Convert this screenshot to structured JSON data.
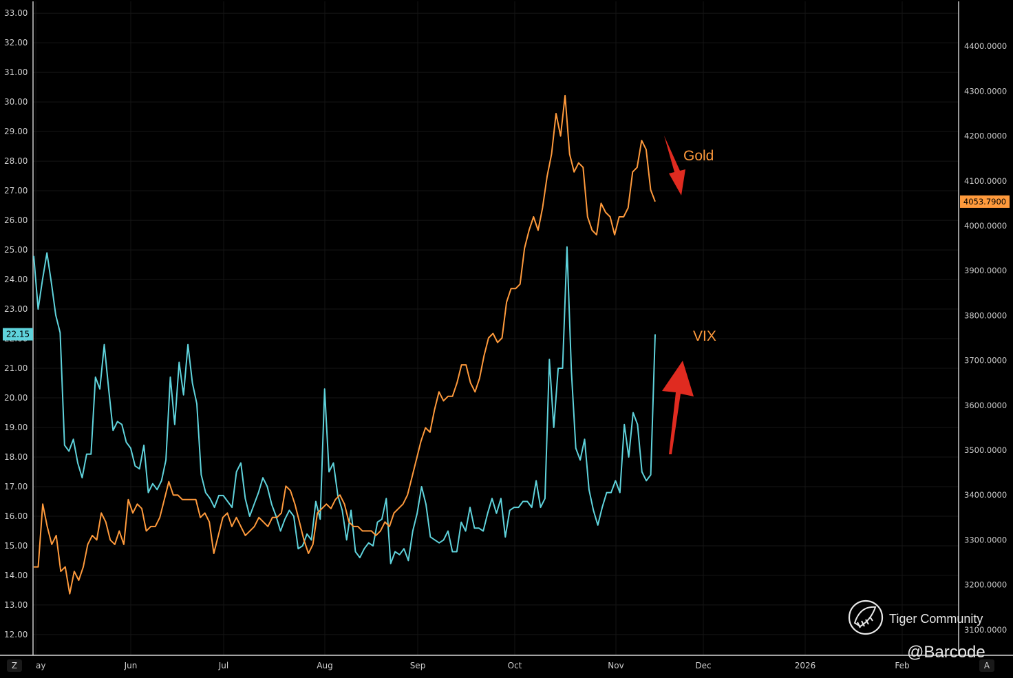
{
  "chart_data": {
    "type": "line",
    "x_axis": {
      "ticks": [
        "ay",
        "Jun",
        "Jul",
        "Aug",
        "Sep",
        "Oct",
        "Nov",
        "Dec",
        "2026",
        "Feb"
      ]
    },
    "left_axis": {
      "ticks": [
        "12.00",
        "13.00",
        "14.00",
        "15.00",
        "16.00",
        "17.00",
        "18.00",
        "19.00",
        "20.00",
        "21.00",
        "22.00",
        "23.00",
        "24.00",
        "25.00",
        "26.00",
        "27.00",
        "28.00",
        "29.00",
        "30.00",
        "31.00",
        "32.00",
        "33.00"
      ],
      "ylim": [
        11.3,
        33.4
      ]
    },
    "right_axis": {
      "ticks": [
        "3100.0000",
        "3200.0000",
        "3300.0000",
        "3400.0000",
        "3500.0000",
        "3600.0000",
        "3700.0000",
        "3800.0000",
        "3900.0000",
        "4000.0000",
        "4100.0000",
        "4200.0000",
        "4300.0000",
        "4400.0000"
      ],
      "ylim": [
        3043,
        4500
      ]
    },
    "series": [
      {
        "name": "VIX",
        "axis": "left",
        "color": "#5fd3dc",
        "last_value_label": "22.15",
        "values": [
          24.8,
          23.0,
          24.0,
          24.9,
          23.9,
          22.8,
          22.2,
          18.4,
          18.2,
          18.6,
          17.8,
          17.3,
          18.1,
          18.1,
          20.7,
          20.3,
          21.8,
          20.3,
          18.9,
          19.2,
          19.1,
          18.5,
          18.3,
          17.7,
          17.6,
          18.4,
          16.8,
          17.1,
          16.9,
          17.2,
          17.9,
          20.7,
          19.1,
          21.2,
          20.1,
          21.8,
          20.5,
          19.8,
          17.4,
          16.8,
          16.6,
          16.3,
          16.7,
          16.7,
          16.5,
          16.3,
          17.5,
          17.8,
          16.6,
          16.0,
          16.4,
          16.8,
          17.3,
          17.0,
          16.4,
          16.0,
          15.5,
          15.9,
          16.2,
          16.0,
          14.9,
          15.0,
          15.4,
          15.2,
          16.5,
          15.9,
          20.3,
          17.5,
          17.8,
          16.7,
          16.2,
          15.2,
          16.2,
          14.8,
          14.6,
          14.9,
          15.1,
          15.0,
          15.8,
          15.9,
          16.6,
          14.4,
          14.8,
          14.7,
          14.9,
          14.5,
          15.5,
          16.1,
          17.0,
          16.4,
          15.3,
          15.2,
          15.1,
          15.2,
          15.5,
          14.8,
          14.8,
          15.8,
          15.5,
          16.3,
          15.6,
          15.6,
          15.5,
          16.1,
          16.6,
          16.1,
          16.6,
          15.3,
          16.2,
          16.3,
          16.3,
          16.5,
          16.5,
          16.3,
          17.2,
          16.3,
          16.6,
          21.3,
          19.0,
          21.0,
          21.0,
          25.1,
          20.9,
          18.3,
          17.9,
          18.6,
          16.9,
          16.2,
          15.7,
          16.3,
          16.8,
          16.8,
          17.2,
          16.8,
          19.1,
          18.0,
          19.5,
          19.1,
          17.5,
          17.2,
          17.4,
          22.15
        ]
      },
      {
        "name": "Gold",
        "axis": "right",
        "color": "#ff9a3c",
        "last_value_label": "4053.7900",
        "values": [
          3240,
          3240,
          3380,
          3330,
          3290,
          3310,
          3230,
          3240,
          3180,
          3230,
          3210,
          3240,
          3290,
          3310,
          3300,
          3360,
          3340,
          3300,
          3290,
          3320,
          3290,
          3390,
          3360,
          3380,
          3370,
          3320,
          3330,
          3330,
          3350,
          3390,
          3430,
          3400,
          3400,
          3390,
          3390,
          3390,
          3390,
          3350,
          3360,
          3340,
          3270,
          3310,
          3350,
          3360,
          3330,
          3350,
          3330,
          3310,
          3320,
          3330,
          3350,
          3340,
          3330,
          3350,
          3350,
          3360,
          3420,
          3410,
          3380,
          3340,
          3300,
          3270,
          3290,
          3360,
          3370,
          3380,
          3370,
          3390,
          3400,
          3380,
          3340,
          3330,
          3330,
          3320,
          3320,
          3320,
          3310,
          3320,
          3340,
          3330,
          3360,
          3370,
          3380,
          3400,
          3440,
          3480,
          3520,
          3550,
          3540,
          3590,
          3630,
          3610,
          3620,
          3620,
          3650,
          3690,
          3690,
          3650,
          3630,
          3660,
          3710,
          3750,
          3760,
          3740,
          3750,
          3830,
          3860,
          3860,
          3870,
          3950,
          3990,
          4020,
          3990,
          4040,
          4110,
          4160,
          4250,
          4200,
          4290,
          4160,
          4120,
          4140,
          4130,
          4020,
          3990,
          3980,
          4050,
          4030,
          4020,
          3980,
          4020,
          4020,
          4040,
          4120,
          4130,
          4190,
          4170,
          4080,
          4053.79
        ]
      }
    ],
    "annotations": [
      {
        "text": "Gold",
        "arrow": "down",
        "color": "#e02b20"
      },
      {
        "text": "VIX",
        "arrow": "up",
        "color": "#e02b20"
      }
    ],
    "grid": true,
    "background": "#000000"
  },
  "watermark": {
    "brand": "Tiger Community",
    "handle": "@Barcode",
    "brand_icon": "tiger-logo-icon"
  },
  "corner_buttons": {
    "left": "Z",
    "right": "A"
  }
}
